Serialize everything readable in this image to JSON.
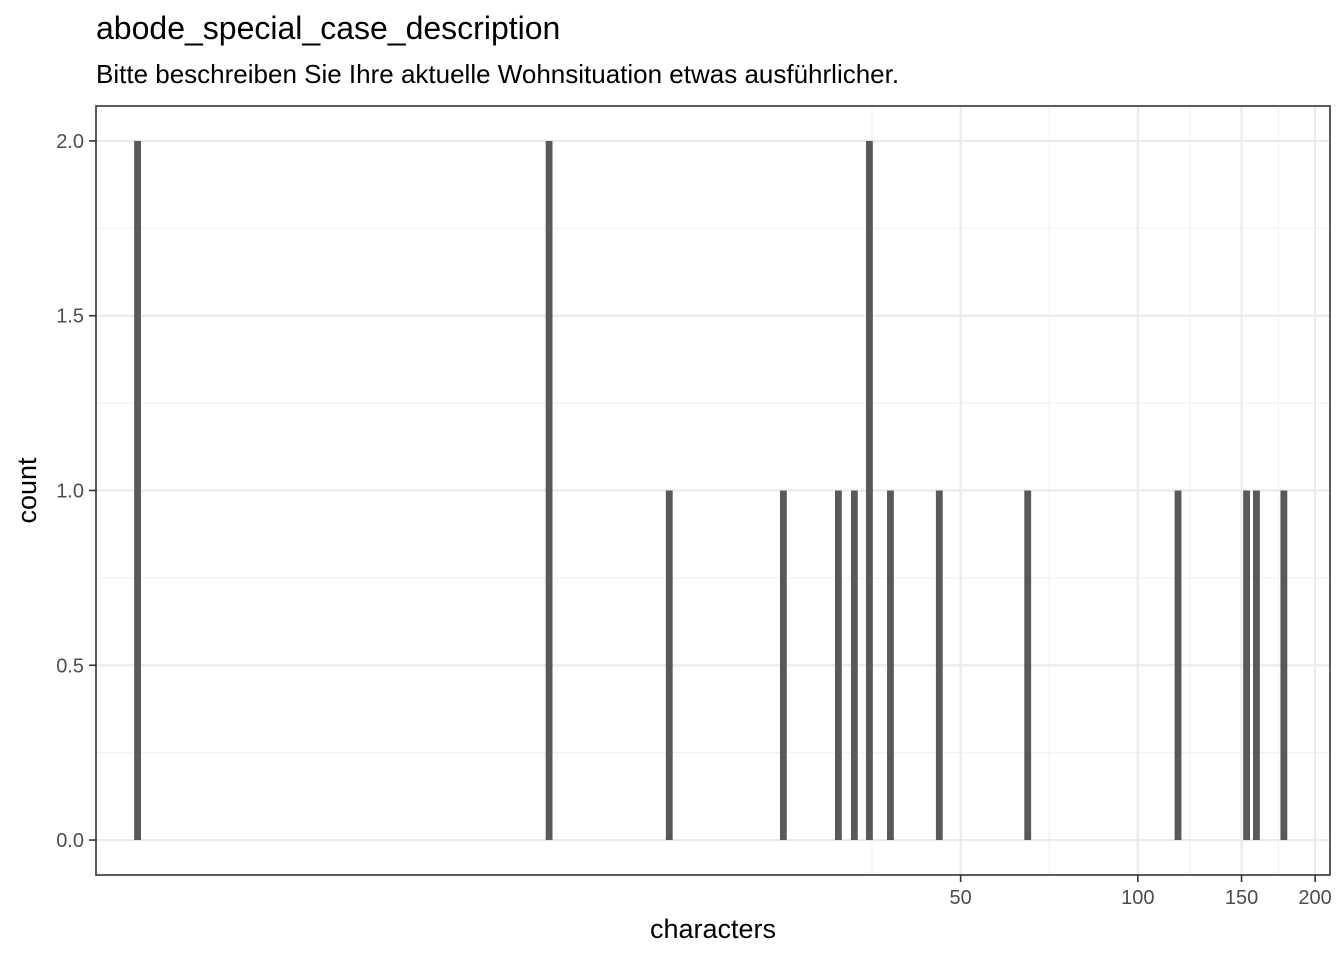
{
  "chart_data": {
    "type": "bar",
    "title": "abode_special_case_description",
    "subtitle": "Bitte beschreiben Sie Ihre aktuelle Wohnsituation etwas ausführlicher.",
    "xlabel": "characters",
    "ylabel": "count",
    "x_scale": "log10",
    "xlim": [
      1.7,
      212
    ],
    "ylim": [
      -0.1,
      2.1
    ],
    "x_ticks": [
      50,
      100,
      150,
      200
    ],
    "x_tick_labels": [
      "50",
      "100",
      "150",
      "200"
    ],
    "y_ticks": [
      0,
      0.5,
      1,
      1.5,
      2
    ],
    "y_tick_labels": [
      "0.0",
      "0.5",
      "1.0",
      "1.5",
      "2.0"
    ],
    "grid": true,
    "bars": [
      {
        "x": 2,
        "count": 2
      },
      {
        "x": 10,
        "count": 2
      },
      {
        "x": 16,
        "count": 1
      },
      {
        "x": 25,
        "count": 1
      },
      {
        "x": 31,
        "count": 1
      },
      {
        "x": 33,
        "count": 1
      },
      {
        "x": 35,
        "count": 2
      },
      {
        "x": 38,
        "count": 1
      },
      {
        "x": 46,
        "count": 1
      },
      {
        "x": 65,
        "count": 1
      },
      {
        "x": 117,
        "count": 1
      },
      {
        "x": 153,
        "count": 1
      },
      {
        "x": 159,
        "count": 1
      },
      {
        "x": 177,
        "count": 1
      }
    ],
    "colors": {
      "bar": "#595959",
      "grid_major": "#ebebeb",
      "grid_minor": "#f2f2f2",
      "panel_border": "#333333"
    }
  }
}
